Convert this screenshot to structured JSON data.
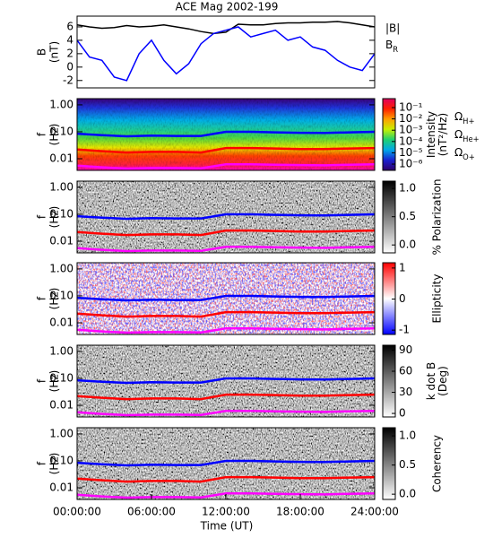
{
  "chart_data": [
    {
      "type": "line",
      "title": "ACE Mag 2002-199",
      "ylabel": [
        "B",
        "(nT)"
      ],
      "x": [
        0,
        1,
        2,
        3,
        4,
        5,
        6,
        7,
        8,
        9,
        10,
        11,
        12,
        13,
        14,
        15,
        16,
        17,
        18,
        19,
        20,
        21,
        22,
        23,
        24
      ],
      "xlim": [
        0,
        24
      ],
      "ylim": [
        -3.1,
        7.6
      ],
      "yticks": [
        -2,
        0,
        2,
        4,
        6
      ],
      "series": [
        {
          "name": "|B|",
          "color": "#000000",
          "values": [
            6.3,
            6.0,
            5.8,
            5.9,
            6.2,
            6.0,
            6.1,
            6.3,
            6.0,
            5.7,
            5.3,
            5.0,
            5.2,
            6.4,
            6.3,
            6.3,
            6.5,
            6.6,
            6.6,
            6.7,
            6.7,
            6.8,
            6.6,
            6.3,
            6.0
          ]
        },
        {
          "name": "BR",
          "color": "#0000ff",
          "values": [
            4.0,
            1.5,
            1.0,
            -1.5,
            -2.0,
            2.0,
            4.0,
            1.0,
            -1.0,
            0.5,
            3.5,
            5.0,
            5.5,
            6.0,
            4.5,
            5.0,
            5.5,
            4.0,
            4.5,
            3.0,
            2.5,
            1.0,
            0.0,
            -0.5,
            2.0
          ]
        }
      ]
    },
    {
      "type": "spectrogram",
      "ylabel": [
        "f",
        "(Hz)"
      ],
      "log_y": true,
      "colormap": "rainbow",
      "x": [
        0,
        2,
        4,
        6,
        8,
        10,
        12,
        14,
        16,
        18,
        20,
        22,
        24
      ],
      "xlim": [
        0,
        24
      ],
      "ylim": [
        0.0037,
        1.7
      ],
      "yticks": [
        {
          "value": 1,
          "label": "1.00"
        },
        {
          "value": 0.1,
          "label": "0.10"
        },
        0.01
      ],
      "series": [
        {
          "name": "ΩH+",
          "color": "#0000ff",
          "values": [
            0.085,
            0.075,
            0.068,
            0.072,
            0.07,
            0.07,
            0.1,
            0.1,
            0.095,
            0.092,
            0.09,
            0.095,
            0.1
          ]
        },
        {
          "name": "ΩHe+",
          "color": "#ff0000",
          "values": [
            0.022,
            0.019,
            0.017,
            0.018,
            0.018,
            0.017,
            0.025,
            0.025,
            0.024,
            0.023,
            0.023,
            0.024,
            0.025
          ]
        },
        {
          "name": "ΩO+",
          "color": "#ff00ff",
          "values": [
            0.0055,
            0.0048,
            0.0043,
            0.0045,
            0.0045,
            0.0044,
            0.0062,
            0.0062,
            0.006,
            0.0058,
            0.0057,
            0.006,
            0.0062
          ]
        }
      ],
      "colorbar": {
        "label": [
          "Intensity",
          "(nT²/Hz)"
        ],
        "log": true,
        "lim": [
          2.8e-07,
          0.62
        ],
        "ticks": [
          {
            "value": 0.1,
            "label": "10⁻¹"
          },
          {
            "value": 0.01,
            "label": "10⁻²"
          },
          {
            "value": 0.001,
            "label": "10⁻³"
          },
          {
            "value": 0.0001,
            "label": "10⁻⁴"
          },
          {
            "value": 1e-05,
            "label": "10⁻⁵"
          },
          {
            "value": 1e-06,
            "label": "10⁻⁶"
          }
        ],
        "colors": [
          "#30006a",
          "#1a20d0",
          "#00a8e8",
          "#20d070",
          "#c8f000",
          "#ffa000",
          "#ff2000",
          "#e00060"
        ]
      }
    },
    {
      "type": "spectrogram",
      "ylabel": [
        "f",
        "(Hz)"
      ],
      "log_y": true,
      "colormap": "gray",
      "x": [
        0,
        2,
        4,
        6,
        8,
        10,
        12,
        14,
        16,
        18,
        20,
        22,
        24
      ],
      "xlim": [
        0,
        24
      ],
      "ylim": [
        0.0037,
        1.7
      ],
      "yticks": [
        {
          "value": 1,
          "label": "1.00"
        },
        {
          "value": 0.1,
          "label": "0.10"
        },
        0.01
      ],
      "series": [
        {
          "color": "#0000ff",
          "values": [
            0.085,
            0.075,
            0.068,
            0.072,
            0.07,
            0.07,
            0.1,
            0.1,
            0.095,
            0.092,
            0.09,
            0.095,
            0.1
          ]
        },
        {
          "color": "#ff0000",
          "values": [
            0.022,
            0.019,
            0.017,
            0.018,
            0.018,
            0.017,
            0.025,
            0.025,
            0.024,
            0.023,
            0.023,
            0.024,
            0.025
          ]
        },
        {
          "color": "#ff00ff",
          "values": [
            0.0055,
            0.0048,
            0.0043,
            0.0045,
            0.0045,
            0.0044,
            0.0062,
            0.0062,
            0.006,
            0.0058,
            0.0057,
            0.006,
            0.0062
          ]
        }
      ],
      "colorbar": {
        "label": [
          "% Polarization"
        ],
        "log": false,
        "lim": [
          -0.14,
          1.13
        ],
        "ticks": [
          {
            "value": 1,
            "label": "1.0"
          },
          0.5,
          {
            "value": 0,
            "label": "0.0"
          }
        ],
        "colors": [
          "#ffffff",
          "#000000"
        ]
      }
    },
    {
      "type": "spectrogram",
      "ylabel": [
        "f",
        "(Hz)"
      ],
      "log_y": true,
      "colormap": "bwr",
      "x": [
        0,
        2,
        4,
        6,
        8,
        10,
        12,
        14,
        16,
        18,
        20,
        22,
        24
      ],
      "xlim": [
        0,
        24
      ],
      "ylim": [
        0.0037,
        1.7
      ],
      "yticks": [
        {
          "value": 1,
          "label": "1.00"
        },
        {
          "value": 0.1,
          "label": "0.10"
        },
        0.01
      ],
      "series": [
        {
          "color": "#0000ff",
          "values": [
            0.085,
            0.075,
            0.068,
            0.072,
            0.07,
            0.07,
            0.1,
            0.1,
            0.095,
            0.092,
            0.09,
            0.095,
            0.1
          ]
        },
        {
          "color": "#ff0000",
          "values": [
            0.022,
            0.019,
            0.017,
            0.018,
            0.018,
            0.017,
            0.025,
            0.025,
            0.024,
            0.023,
            0.023,
            0.024,
            0.025
          ]
        },
        {
          "color": "#ff00ff",
          "values": [
            0.0055,
            0.0048,
            0.0043,
            0.0045,
            0.0045,
            0.0044,
            0.0062,
            0.0062,
            0.006,
            0.0058,
            0.0057,
            0.006,
            0.0062
          ]
        }
      ],
      "colorbar": {
        "label": [
          "Ellipticity"
        ],
        "log": false,
        "lim": [
          -1.14,
          1.17
        ],
        "ticks": [
          1,
          0,
          -1
        ],
        "colors": [
          "#0000ff",
          "#ffffff",
          "#ff0000"
        ]
      }
    },
    {
      "type": "spectrogram",
      "ylabel": [
        "f",
        "(Hz)"
      ],
      "log_y": true,
      "colormap": "gray",
      "x": [
        0,
        2,
        4,
        6,
        8,
        10,
        12,
        14,
        16,
        18,
        20,
        22,
        24
      ],
      "xlim": [
        0,
        24
      ],
      "ylim": [
        0.0037,
        1.7
      ],
      "yticks": [
        {
          "value": 1,
          "label": "1.00"
        },
        {
          "value": 0.1,
          "label": "0.10"
        },
        0.01
      ],
      "series": [
        {
          "color": "#0000ff",
          "values": [
            0.085,
            0.075,
            0.068,
            0.072,
            0.07,
            0.07,
            0.1,
            0.1,
            0.095,
            0.092,
            0.09,
            0.095,
            0.1
          ]
        },
        {
          "color": "#ff0000",
          "values": [
            0.022,
            0.019,
            0.017,
            0.018,
            0.018,
            0.017,
            0.025,
            0.025,
            0.024,
            0.023,
            0.023,
            0.024,
            0.025
          ]
        },
        {
          "color": "#ff00ff",
          "values": [
            0.0055,
            0.0048,
            0.0043,
            0.0045,
            0.0045,
            0.0044,
            0.0062,
            0.0062,
            0.006,
            0.0058,
            0.0057,
            0.006,
            0.0062
          ]
        }
      ],
      "colorbar": {
        "label": [
          "k dot B",
          "(Deg)"
        ],
        "log": false,
        "lim": [
          -5,
          97
        ],
        "ticks": [
          90,
          60,
          30,
          0
        ],
        "colors": [
          "#ffffff",
          "#000000"
        ]
      }
    },
    {
      "type": "spectrogram",
      "ylabel": [
        "f",
        "(Hz)"
      ],
      "log_y": true,
      "colormap": "gray",
      "x": [
        0,
        2,
        4,
        6,
        8,
        10,
        12,
        14,
        16,
        18,
        20,
        22,
        24
      ],
      "xlim": [
        0,
        24
      ],
      "ylim": [
        0.0037,
        1.7
      ],
      "yticks": [
        {
          "value": 1,
          "label": "1.00"
        },
        {
          "value": 0.1,
          "label": "0.10"
        },
        0.01
      ],
      "xticks": [
        {
          "value": 0,
          "label": "00:00:00"
        },
        {
          "value": 6,
          "label": "06:00:00"
        },
        {
          "value": 12,
          "label": "12:00:00"
        },
        {
          "value": 18,
          "label": "18:00:00"
        },
        {
          "value": 24,
          "label": "24:00:00"
        }
      ],
      "xlabel": "Time (UT)",
      "series": [
        {
          "color": "#0000ff",
          "values": [
            0.085,
            0.075,
            0.068,
            0.072,
            0.07,
            0.07,
            0.1,
            0.1,
            0.095,
            0.092,
            0.09,
            0.095,
            0.1
          ]
        },
        {
          "color": "#ff0000",
          "values": [
            0.022,
            0.019,
            0.017,
            0.018,
            0.018,
            0.017,
            0.025,
            0.025,
            0.024,
            0.023,
            0.023,
            0.024,
            0.025
          ]
        },
        {
          "color": "#ff00ff",
          "values": [
            0.0055,
            0.0048,
            0.0043,
            0.0045,
            0.0045,
            0.0044,
            0.0062,
            0.0062,
            0.006,
            0.0058,
            0.0057,
            0.006,
            0.0062
          ]
        }
      ],
      "colorbar": {
        "label": [
          "Coherency"
        ],
        "log": false,
        "lim": [
          -0.09,
          1.14
        ],
        "ticks": [
          {
            "value": 1,
            "label": "1.0"
          },
          0.5,
          {
            "value": 0,
            "label": "0.0"
          }
        ],
        "colors": [
          "#ffffff",
          "#000000"
        ]
      }
    }
  ]
}
